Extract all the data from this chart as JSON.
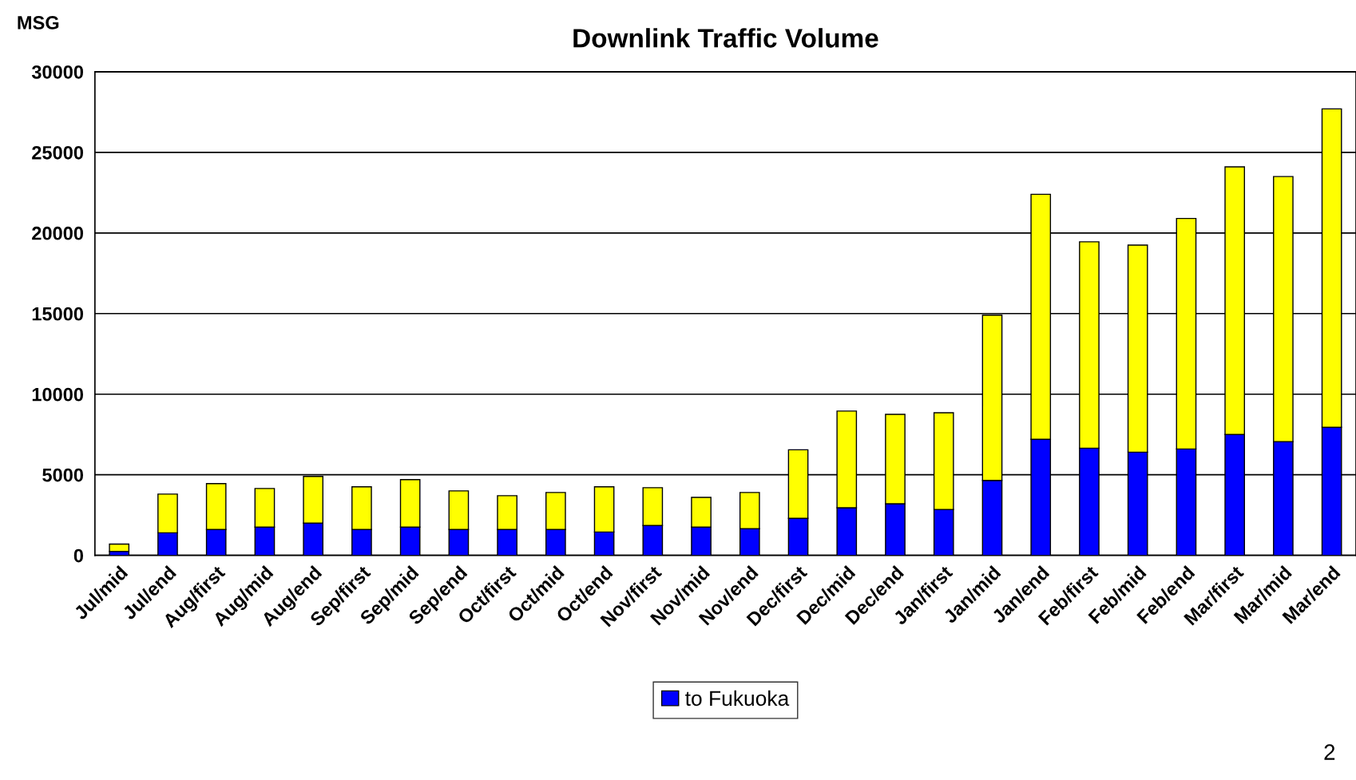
{
  "chart_data": {
    "type": "bar",
    "title": "Downlink Traffic Volume",
    "ylabel": "MSG",
    "stacked": true,
    "categories": [
      "Jul/mid",
      "Jul/end",
      "Aug/first",
      "Aug/mid",
      "Aug/end",
      "Sep/first",
      "Sep/mid",
      "Sep/end",
      "Oct/first",
      "Oct/mid",
      "Oct/end",
      "Nov/first",
      "Nov/mid",
      "Nov/end",
      "Dec/first",
      "Dec/mid",
      "Dec/end",
      "Jan/first",
      "Jan/mid",
      "Jan/end",
      "Feb/first",
      "Feb/mid",
      "Feb/end",
      "Mar/first",
      "Mar/mid",
      "Mar/end"
    ],
    "series": [
      {
        "name": "to Fukuoka",
        "color": "#0000ff",
        "values": [
          250,
          1400,
          1600,
          1750,
          2000,
          1600,
          1750,
          1600,
          1600,
          1600,
          1450,
          1850,
          1750,
          1650,
          2300,
          2950,
          3200,
          2850,
          4650,
          7200,
          6650,
          6400,
          6600,
          7500,
          7050,
          7950
        ]
      },
      {
        "color": "#ffff00",
        "values": [
          450,
          2400,
          2850,
          2400,
          2900,
          2650,
          2950,
          2400,
          2100,
          2300,
          2800,
          2350,
          1850,
          2250,
          4250,
          6000,
          5550,
          6000,
          10250,
          15200,
          12800,
          12850,
          14300,
          16600,
          16450,
          19750
        ]
      }
    ],
    "ylim": [
      0,
      30000
    ],
    "yticks": [
      0,
      5000,
      10000,
      15000,
      20000,
      25000,
      30000
    ],
    "grid": "y",
    "legend": "bottom",
    "annotations": [
      "2"
    ]
  }
}
